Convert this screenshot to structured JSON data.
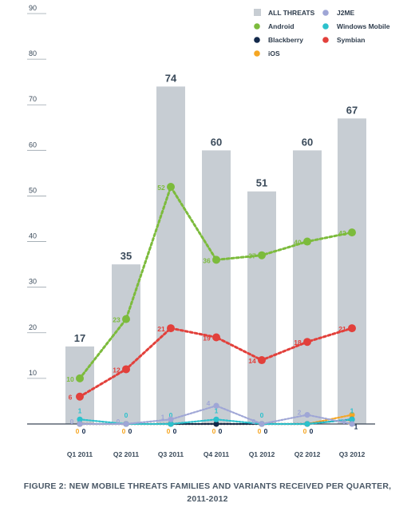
{
  "chart_data": {
    "type": "bar",
    "title": "",
    "xlabel": "",
    "ylabel": "",
    "ylim": [
      0,
      90
    ],
    "yticks": [
      10,
      20,
      30,
      40,
      50,
      60,
      70,
      80,
      90
    ],
    "categories": [
      "Q1 2011",
      "Q2 2011",
      "Q3 2011",
      "Q4 2011",
      "Q1 2012",
      "Q2 2012",
      "Q3 2012"
    ],
    "bars": {
      "name": "ALL THREATS",
      "color": "#c7cdd3",
      "values": [
        17,
        35,
        74,
        60,
        51,
        60,
        67
      ]
    },
    "series": [
      {
        "name": "Android",
        "color": "#7cbb3c",
        "values": [
          10,
          23,
          52,
          36,
          37,
          40,
          42
        ]
      },
      {
        "name": "Symbian",
        "color": "#e2403b",
        "values": [
          6,
          12,
          21,
          19,
          14,
          18,
          21
        ]
      },
      {
        "name": "J2ME",
        "color": "#9fa6d6",
        "values": [
          0,
          0,
          1,
          4,
          0,
          2,
          0
        ]
      },
      {
        "name": "Windows Mobile",
        "color": "#2cc1cc",
        "values": [
          1,
          0,
          0,
          1,
          0,
          0,
          1
        ]
      },
      {
        "name": "Blackberry",
        "color": "#13294b",
        "values": [
          0,
          0,
          0,
          0,
          0,
          0,
          1
        ]
      },
      {
        "name": "iOS",
        "color": "#f5a623",
        "values": [
          0,
          0,
          0,
          0,
          0,
          0,
          2
        ]
      }
    ],
    "legend_placement": "top-right",
    "legend_order": [
      "ALL THREATS",
      "J2ME",
      "Android",
      "Windows Mobile",
      "Blackberry",
      "Symbian",
      "iOS"
    ],
    "grid": false
  },
  "caption": {
    "line1": "FIGURE 2: NEW MOBILE THREATS FAMILIES AND VARIANTS RECEIVED PER QUARTER,",
    "line2": "2011-2012"
  }
}
